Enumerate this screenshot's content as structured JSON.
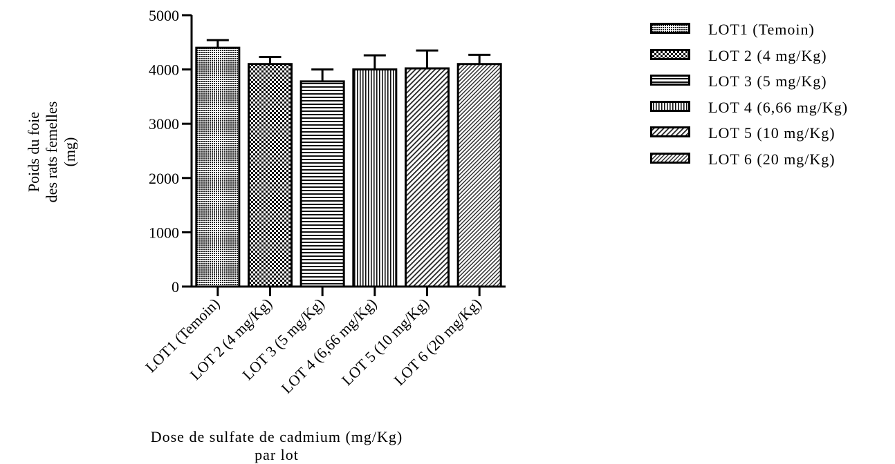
{
  "chart_data": {
    "type": "bar",
    "xlabel": "Dose de sulfate de cadmium (mg/Kg) par lot",
    "ylabel_lines": [
      "Poids du foie",
      "des rats femelles",
      "(mg)"
    ],
    "ylim": [
      0,
      5000
    ],
    "yticks": [
      0,
      1000,
      2000,
      3000,
      4000,
      5000
    ],
    "categories": [
      "LOT1 (Temoin)",
      "LOT 2 (4 mg/Kg)",
      "LOT 3 (5 mg/Kg)",
      "LOT 4 (6,66 mg/Kg)",
      "LOT 5 (10 mg/Kg)",
      "LOT 6 (20 mg/Kg)"
    ],
    "values": [
      4400,
      4100,
      3780,
      4000,
      4020,
      4100
    ],
    "errors": [
      140,
      130,
      220,
      260,
      330,
      170
    ],
    "patterns": [
      "dots-dense",
      "checker",
      "horizontal-lines",
      "vertical-lines",
      "diagonal-lines",
      "diagonal-lines-fine"
    ],
    "legend_position": "right",
    "legend": [
      "LOT1 (Temoin)",
      "LOT 2 (4 mg/Kg)",
      "LOT 3 (5 mg/Kg)",
      "LOT 4 (6,66 mg/Kg)",
      "LOT 5 (10 mg/Kg)",
      "LOT 6 (20 mg/Kg)"
    ],
    "grid": false
  }
}
